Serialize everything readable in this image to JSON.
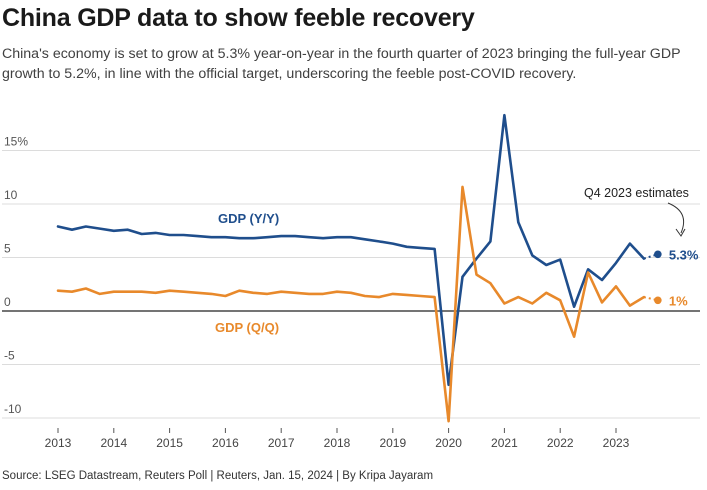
{
  "header": {
    "title": "China GDP data to show feeble recovery",
    "subtitle": "China's economy is set to grow at 5.3% year-on-year in the fourth quarter of 2023 bringing the full-year GDP growth to 5.2%, in line with the official target, underscoring the feeble post-COVID recovery."
  },
  "footer": {
    "source": "Source: LSEG Datastream, Reuters Poll | Reuters, Jan. 15, 2024 | By Kripa Jayaram"
  },
  "chart_data": {
    "type": "line",
    "title": "China GDP data to show feeble recovery",
    "xlabel": "",
    "ylabel": "",
    "ylim": [
      -12,
      19
    ],
    "xlim": [
      2012.75,
      2024.4
    ],
    "y_ticks": [
      {
        "value": 15,
        "label": "15%"
      },
      {
        "value": 10,
        "label": "10"
      },
      {
        "value": 5,
        "label": "5"
      },
      {
        "value": 0,
        "label": "0"
      },
      {
        "value": -5,
        "label": "-5"
      },
      {
        "value": -10,
        "label": "-10"
      }
    ],
    "x_ticks": [
      {
        "value": 2013,
        "label": "2013"
      },
      {
        "value": 2014,
        "label": "2014"
      },
      {
        "value": 2015,
        "label": "2015"
      },
      {
        "value": 2016,
        "label": "2016"
      },
      {
        "value": 2017,
        "label": "2017"
      },
      {
        "value": 2018,
        "label": "2018"
      },
      {
        "value": 2019,
        "label": "2019"
      },
      {
        "value": 2020,
        "label": "2020"
      },
      {
        "value": 2021,
        "label": "2021"
      },
      {
        "value": 2022,
        "label": "2022"
      },
      {
        "value": 2023,
        "label": "2023"
      }
    ],
    "grid": true,
    "annotation": "Q4 2023 estimates",
    "series": [
      {
        "name": "GDP (Y/Y)",
        "color": "#1f4e8c",
        "x": [
          2013.0,
          2013.25,
          2013.5,
          2013.75,
          2014.0,
          2014.25,
          2014.5,
          2014.75,
          2015.0,
          2015.25,
          2015.5,
          2015.75,
          2016.0,
          2016.25,
          2016.5,
          2016.75,
          2017.0,
          2017.25,
          2017.5,
          2017.75,
          2018.0,
          2018.25,
          2018.5,
          2018.75,
          2019.0,
          2019.25,
          2019.5,
          2019.75,
          2020.0,
          2020.25,
          2020.5,
          2020.75,
          2021.0,
          2021.25,
          2021.5,
          2021.75,
          2022.0,
          2022.25,
          2022.5,
          2022.75,
          2023.0,
          2023.25,
          2023.5
        ],
        "y": [
          7.9,
          7.6,
          7.9,
          7.7,
          7.5,
          7.6,
          7.2,
          7.3,
          7.1,
          7.1,
          7.0,
          6.9,
          6.9,
          6.8,
          6.8,
          6.9,
          7.0,
          7.0,
          6.9,
          6.8,
          6.9,
          6.9,
          6.7,
          6.5,
          6.3,
          6.0,
          5.9,
          5.8,
          -6.9,
          3.2,
          4.9,
          6.5,
          18.3,
          8.3,
          5.2,
          4.3,
          4.8,
          0.4,
          3.9,
          2.9,
          4.5,
          6.3,
          4.9
        ],
        "estimate": {
          "x": 2023.75,
          "y": 5.3
        },
        "end_label": "5.3%"
      },
      {
        "name": "GDP (Q/Q)",
        "color": "#e8892b",
        "x": [
          2013.0,
          2013.25,
          2013.5,
          2013.75,
          2014.0,
          2014.25,
          2014.5,
          2014.75,
          2015.0,
          2015.25,
          2015.5,
          2015.75,
          2016.0,
          2016.25,
          2016.5,
          2016.75,
          2017.0,
          2017.25,
          2017.5,
          2017.75,
          2018.0,
          2018.25,
          2018.5,
          2018.75,
          2019.0,
          2019.25,
          2019.5,
          2019.75,
          2020.0,
          2020.25,
          2020.5,
          2020.75,
          2021.0,
          2021.25,
          2021.5,
          2021.75,
          2022.0,
          2022.25,
          2022.5,
          2022.75,
          2023.0,
          2023.25,
          2023.5
        ],
        "y": [
          1.9,
          1.8,
          2.1,
          1.6,
          1.8,
          1.8,
          1.8,
          1.7,
          1.9,
          1.8,
          1.7,
          1.6,
          1.4,
          1.9,
          1.7,
          1.6,
          1.8,
          1.7,
          1.6,
          1.6,
          1.8,
          1.7,
          1.4,
          1.3,
          1.6,
          1.5,
          1.4,
          1.3,
          -10.3,
          11.6,
          3.4,
          2.6,
          0.7,
          1.3,
          0.7,
          1.7,
          1.0,
          -2.4,
          3.6,
          0.8,
          2.3,
          0.5,
          1.3
        ],
        "estimate": {
          "x": 2023.75,
          "y": 1.0
        },
        "end_label": "1%"
      }
    ]
  }
}
